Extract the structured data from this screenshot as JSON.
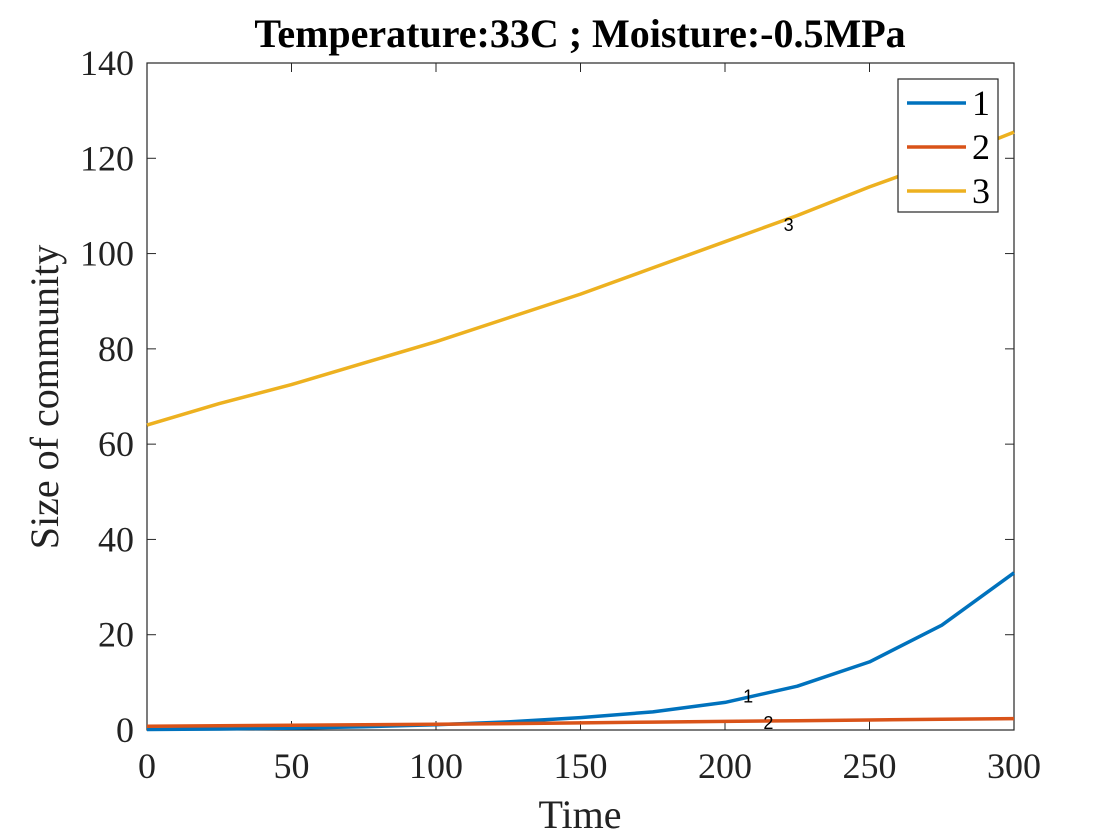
{
  "chart_data": {
    "type": "line",
    "title": "Temperature:33C ; Moisture:-0.5MPa",
    "xlabel": "Time",
    "ylabel": "Size of community",
    "xlim": [
      0,
      300
    ],
    "ylim": [
      0,
      140
    ],
    "xticks": [
      0,
      50,
      100,
      150,
      200,
      250,
      300
    ],
    "yticks": [
      0,
      20,
      40,
      60,
      80,
      100,
      120,
      140
    ],
    "grid": false,
    "legend_position": "top-right",
    "x": [
      0,
      25,
      50,
      75,
      100,
      125,
      150,
      175,
      200,
      225,
      250,
      275,
      300
    ],
    "series": [
      {
        "name": "1",
        "color": "#0072BD",
        "values": [
          0.1,
          0.2,
          0.4,
          0.7,
          1.1,
          1.7,
          2.6,
          3.8,
          5.8,
          9.2,
          14.3,
          22.0,
          33.0
        ],
        "inline_label": {
          "text": "1",
          "x": 208,
          "y": 7
        }
      },
      {
        "name": "2",
        "color": "#D95319",
        "values": [
          0.8,
          0.9,
          1.0,
          1.1,
          1.2,
          1.35,
          1.5,
          1.65,
          1.8,
          1.95,
          2.1,
          2.25,
          2.4
        ],
        "inline_label": {
          "text": "2",
          "x": 215,
          "y": 1.5
        }
      },
      {
        "name": "3",
        "color": "#EDB120",
        "values": [
          64,
          68.5,
          72.5,
          77,
          81.5,
          86.5,
          91.5,
          97,
          102.5,
          108,
          114,
          119.5,
          125.5
        ],
        "inline_label": {
          "text": "3",
          "x": 222,
          "y": 106
        }
      }
    ]
  }
}
